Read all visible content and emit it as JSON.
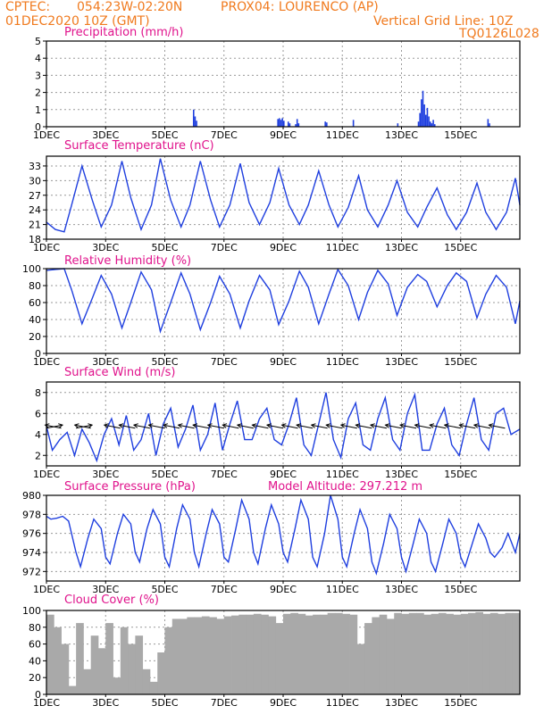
{
  "header": {
    "source": "CPTEC:",
    "coords": "054:23W-02:20N",
    "station": "PROX04: LOURENCO (AP)",
    "run": "01DEC2020 10Z (GMT)",
    "grid_note": "Vertical Grid Line: 10Z",
    "model": "TQ0126L028"
  },
  "colors": {
    "header": "#f07a1e",
    "title": "#e0138c",
    "series": "#1f3fdf",
    "cloud": "#a9a9a9"
  },
  "chart_data": [
    {
      "type": "bar",
      "title": "Precipitation (mm/h)",
      "x_tick_labels": [
        "1DEC",
        "3DEC",
        "5DEC",
        "7DEC",
        "9DEC",
        "11DEC",
        "13DEC",
        "15DEC"
      ],
      "ylim": [
        0,
        5
      ],
      "y_ticks": [
        0,
        1,
        2,
        3,
        4,
        5
      ],
      "grid": true,
      "series": [
        {
          "x": [
            4.95,
            5.0,
            5.05,
            7.8,
            7.85,
            7.9,
            7.95,
            8.0,
            8.15,
            8.2,
            8.4,
            8.45,
            8.5,
            9.4,
            9.45,
            10.35,
            11.85,
            12.55,
            12.6,
            12.65,
            12.7,
            12.75,
            12.8,
            12.85,
            12.9,
            12.95,
            13.0,
            13.05,
            13.1,
            14.9,
            14.95
          ],
          "y": [
            1.0,
            0.6,
            0.35,
            0.45,
            0.5,
            0.4,
            0.5,
            0.35,
            0.3,
            0.2,
            0.15,
            0.45,
            0.2,
            0.3,
            0.25,
            0.4,
            0.2,
            0.3,
            0.8,
            1.6,
            2.1,
            1.3,
            0.7,
            1.1,
            0.6,
            0.3,
            0.2,
            0.4,
            0.15,
            0.45,
            0.2
          ]
        }
      ]
    },
    {
      "type": "line",
      "title": "Surface Temperature (nC)",
      "x_tick_labels": [
        "1DEC",
        "3DEC",
        "5DEC",
        "7DEC",
        "9DEC",
        "11DEC",
        "13DEC",
        "15DEC"
      ],
      "ylim": [
        18,
        35
      ],
      "y_ticks": [
        18,
        21,
        24,
        27,
        30,
        33
      ],
      "grid": true,
      "series": [
        {
          "x": [
            0.0,
            0.3,
            0.6,
            0.85,
            1.2,
            1.55,
            1.85,
            2.2,
            2.55,
            2.85,
            3.2,
            3.55,
            3.85,
            4.2,
            4.55,
            4.85,
            5.2,
            5.55,
            5.85,
            6.2,
            6.55,
            6.85,
            7.2,
            7.55,
            7.85,
            8.2,
            8.55,
            8.85,
            9.2,
            9.55,
            9.85,
            10.2,
            10.55,
            10.85,
            11.2,
            11.55,
            11.85,
            12.2,
            12.55,
            12.85,
            13.2,
            13.55,
            13.85,
            14.2,
            14.55,
            14.85,
            15.2,
            15.55,
            15.85,
            16.0
          ],
          "y": [
            21.5,
            20.0,
            19.5,
            25.0,
            33.0,
            26.0,
            20.5,
            25.0,
            34.0,
            26.5,
            20.0,
            25.0,
            34.5,
            26.0,
            20.5,
            25.0,
            34.0,
            26.0,
            20.5,
            25.0,
            33.5,
            25.5,
            21.0,
            25.5,
            32.5,
            25.0,
            21.0,
            25.0,
            32.0,
            25.0,
            20.5,
            24.5,
            31.0,
            24.0,
            20.5,
            25.0,
            30.0,
            23.5,
            20.5,
            24.5,
            28.5,
            23.0,
            20.0,
            23.5,
            29.5,
            23.5,
            20.0,
            23.5,
            30.5,
            25.0
          ]
        }
      ]
    },
    {
      "type": "line",
      "title": "Relative Humidity (%)",
      "x_tick_labels": [
        "1DEC",
        "3DEC",
        "5DEC",
        "7DEC",
        "9DEC",
        "11DEC",
        "13DEC",
        "15DEC"
      ],
      "ylim": [
        0,
        100
      ],
      "y_ticks": [
        0,
        20,
        40,
        60,
        80,
        100
      ],
      "grid": true,
      "series": [
        {
          "x": [
            0.0,
            0.3,
            0.6,
            0.85,
            1.2,
            1.55,
            1.85,
            2.2,
            2.55,
            2.85,
            3.2,
            3.55,
            3.85,
            4.2,
            4.55,
            4.85,
            5.2,
            5.55,
            5.85,
            6.2,
            6.55,
            6.85,
            7.2,
            7.55,
            7.85,
            8.2,
            8.55,
            8.85,
            9.2,
            9.55,
            9.85,
            10.2,
            10.55,
            10.85,
            11.2,
            11.55,
            11.85,
            12.2,
            12.55,
            12.85,
            13.2,
            13.55,
            13.85,
            14.2,
            14.55,
            14.85,
            15.2,
            15.55,
            15.85,
            16.0
          ],
          "y": [
            98,
            99,
            100,
            75,
            35,
            65,
            92,
            70,
            30,
            60,
            96,
            75,
            26,
            60,
            95,
            70,
            28,
            60,
            91,
            70,
            30,
            62,
            92,
            75,
            34,
            62,
            97,
            78,
            35,
            70,
            99,
            80,
            40,
            72,
            98,
            82,
            45,
            78,
            93,
            85,
            55,
            80,
            95,
            85,
            42,
            70,
            92,
            78,
            35,
            62
          ]
        }
      ]
    },
    {
      "type": "line",
      "title": "Surface Wind (m/s)",
      "x_tick_labels": [
        "1DEC",
        "3DEC",
        "5DEC",
        "7DEC",
        "9DEC",
        "11DEC",
        "13DEC",
        "15DEC"
      ],
      "ylim": [
        1,
        9
      ],
      "y_ticks": [
        2,
        4,
        6,
        8
      ],
      "grid": true,
      "series": [
        {
          "x": [
            0.0,
            0.2,
            0.45,
            0.7,
            0.95,
            1.2,
            1.45,
            1.7,
            1.95,
            2.2,
            2.45,
            2.7,
            2.95,
            3.2,
            3.45,
            3.7,
            3.95,
            4.2,
            4.45,
            4.7,
            4.95,
            5.2,
            5.45,
            5.7,
            5.95,
            6.2,
            6.45,
            6.7,
            6.95,
            7.2,
            7.45,
            7.7,
            7.95,
            8.2,
            8.45,
            8.7,
            8.95,
            9.2,
            9.45,
            9.7,
            9.95,
            10.2,
            10.45,
            10.7,
            10.95,
            11.2,
            11.45,
            11.7,
            11.95,
            12.2,
            12.45,
            12.7,
            12.95,
            13.2,
            13.45,
            13.7,
            13.95,
            14.2,
            14.45,
            14.7,
            14.95,
            15.2,
            15.45,
            15.7,
            16.0
          ],
          "y": [
            4.8,
            2.5,
            3.5,
            4.2,
            2.0,
            4.5,
            3.2,
            1.5,
            4.0,
            5.5,
            3.0,
            5.8,
            2.5,
            3.5,
            6.0,
            2.0,
            5.0,
            6.5,
            2.8,
            4.5,
            6.8,
            2.5,
            4.0,
            7.0,
            2.5,
            5.0,
            7.2,
            3.5,
            3.5,
            5.5,
            6.5,
            3.5,
            3.0,
            5.0,
            7.5,
            3.0,
            2.0,
            5.0,
            8.0,
            3.5,
            1.8,
            5.5,
            7.0,
            3.0,
            2.5,
            5.5,
            7.5,
            3.5,
            2.5,
            6.0,
            7.8,
            2.5,
            2.5,
            5.0,
            6.5,
            3.0,
            2.0,
            5.0,
            7.5,
            3.5,
            2.5,
            6.0,
            6.5,
            4.0,
            4.5
          ]
        }
      ],
      "wind_arrows": [
        {
          "x": 0.0,
          "dx": 1.0,
          "dy": -0.35
        },
        {
          "x": 0.5,
          "dx": -1.0,
          "dy": -0.35
        },
        {
          "x": 1.0,
          "dx": 1.0,
          "dy": -0.35
        },
        {
          "x": 1.5,
          "dx": -1.0,
          "dy": -0.35
        },
        {
          "x": 2.5,
          "dx": -1.0,
          "dy": -0.35
        },
        {
          "x": 3.0,
          "dx": -1.0,
          "dy": -0.35
        },
        {
          "x": 3.5,
          "dx": -1.0,
          "dy": -0.35
        },
        {
          "x": 4.0,
          "dx": -1.0,
          "dy": -0.35
        },
        {
          "x": 4.5,
          "dx": -1.0,
          "dy": -0.35
        },
        {
          "x": 5.0,
          "dx": -1.0,
          "dy": -0.35
        },
        {
          "x": 5.5,
          "dx": -1.0,
          "dy": -0.35
        },
        {
          "x": 6.0,
          "dx": -1.0,
          "dy": -0.35
        },
        {
          "x": 6.5,
          "dx": -1.0,
          "dy": -0.35
        },
        {
          "x": 7.0,
          "dx": -1.0,
          "dy": -0.35
        },
        {
          "x": 7.5,
          "dx": -1.0,
          "dy": -0.35
        },
        {
          "x": 8.0,
          "dx": -1.0,
          "dy": -0.35
        },
        {
          "x": 8.5,
          "dx": -1.0,
          "dy": -0.35
        },
        {
          "x": 9.0,
          "dx": -1.0,
          "dy": -0.35
        },
        {
          "x": 9.5,
          "dx": -1.0,
          "dy": -0.35
        },
        {
          "x": 10.0,
          "dx": -1.0,
          "dy": -0.35
        },
        {
          "x": 10.5,
          "dx": -1.0,
          "dy": -0.35
        },
        {
          "x": 11.0,
          "dx": -1.0,
          "dy": -0.35
        },
        {
          "x": 11.5,
          "dx": -1.0,
          "dy": -0.35
        },
        {
          "x": 12.0,
          "dx": -1.0,
          "dy": -0.35
        },
        {
          "x": 12.5,
          "dx": -1.0,
          "dy": -0.35
        },
        {
          "x": 13.0,
          "dx": -1.0,
          "dy": -0.35
        },
        {
          "x": 13.5,
          "dx": -1.0,
          "dy": -0.35
        },
        {
          "x": 14.0,
          "dx": -1.0,
          "dy": -0.35
        },
        {
          "x": 14.5,
          "dx": -1.0,
          "dy": -0.35
        },
        {
          "x": 15.0,
          "dx": -1.0,
          "dy": -0.35
        },
        {
          "x": 15.5,
          "dx": -1.0,
          "dy": -0.35
        }
      ]
    },
    {
      "type": "line",
      "title": "Surface Pressure (hPa)",
      "annotation": "Model Altitude: 297.212 m",
      "x_tick_labels": [
        "1DEC",
        "3DEC",
        "5DEC",
        "7DEC",
        "9DEC",
        "11DEC",
        "13DEC",
        "15DEC"
      ],
      "ylim": [
        971,
        980
      ],
      "y_ticks": [
        972,
        974,
        976,
        978,
        980
      ],
      "grid": true,
      "series": [
        {
          "x": [
            0.0,
            0.15,
            0.35,
            0.55,
            0.75,
            1.0,
            1.15,
            1.4,
            1.6,
            1.85,
            2.0,
            2.15,
            2.4,
            2.6,
            2.85,
            3.0,
            3.15,
            3.4,
            3.6,
            3.85,
            4.0,
            4.15,
            4.4,
            4.6,
            4.85,
            5.0,
            5.15,
            5.4,
            5.6,
            5.85,
            6.0,
            6.15,
            6.4,
            6.6,
            6.85,
            7.0,
            7.15,
            7.4,
            7.6,
            7.85,
            8.0,
            8.15,
            8.4,
            8.6,
            8.85,
            9.0,
            9.15,
            9.4,
            9.6,
            9.85,
            10.0,
            10.15,
            10.4,
            10.6,
            10.85,
            11.0,
            11.15,
            11.4,
            11.6,
            11.85,
            12.0,
            12.15,
            12.4,
            12.6,
            12.85,
            13.0,
            13.15,
            13.4,
            13.6,
            13.85,
            14.0,
            14.15,
            14.4,
            14.6,
            14.85,
            15.0,
            15.15,
            15.4,
            15.6,
            15.85,
            16.0
          ],
          "y": [
            977.8,
            977.5,
            977.6,
            977.8,
            977.3,
            974.0,
            972.5,
            975.5,
            977.5,
            976.5,
            973.5,
            972.8,
            976.0,
            978.0,
            977.0,
            974.0,
            973.0,
            976.5,
            978.5,
            977.0,
            973.5,
            972.5,
            976.5,
            979.0,
            977.5,
            974.0,
            972.5,
            976.0,
            978.5,
            977.0,
            973.5,
            973.0,
            976.5,
            979.5,
            977.5,
            974.0,
            972.8,
            976.5,
            979.0,
            977.0,
            974.0,
            973.0,
            976.5,
            979.5,
            977.5,
            973.5,
            972.5,
            976.0,
            980.0,
            977.5,
            973.5,
            972.5,
            976.0,
            978.5,
            976.5,
            973.0,
            971.8,
            975.0,
            978.0,
            976.5,
            973.5,
            972.0,
            975.0,
            977.5,
            976.0,
            973.0,
            972.0,
            975.0,
            977.5,
            976.0,
            973.5,
            972.5,
            975.0,
            977.0,
            975.5,
            974.0,
            973.5,
            974.5,
            976.0,
            974.0,
            976.0
          ]
        }
      ]
    },
    {
      "type": "bar",
      "title": "Cloud Cover (%)",
      "x_tick_labels": [
        "1DEC",
        "3DEC",
        "5DEC",
        "7DEC",
        "9DEC",
        "11DEC",
        "13DEC",
        "15DEC"
      ],
      "ylim": [
        0,
        100
      ],
      "y_ticks": [
        0,
        20,
        40,
        60,
        80,
        100
      ],
      "grid": true,
      "series": [
        {
          "x": [
            0.0,
            0.25,
            0.5,
            0.75,
            1.0,
            1.25,
            1.5,
            1.75,
            2.0,
            2.25,
            2.5,
            2.75,
            3.0,
            3.25,
            3.5,
            3.75,
            4.0,
            4.25,
            4.5,
            4.75,
            5.0,
            5.25,
            5.5,
            5.75,
            6.0,
            6.25,
            6.5,
            6.75,
            7.0,
            7.25,
            7.5,
            7.75,
            8.0,
            8.25,
            8.5,
            8.75,
            9.0,
            9.25,
            9.5,
            9.75,
            10.0,
            10.25,
            10.5,
            10.75,
            11.0,
            11.25,
            11.5,
            11.75,
            12.0,
            12.25,
            12.5,
            12.75,
            13.0,
            13.25,
            13.5,
            13.75,
            14.0,
            14.25,
            14.5,
            14.75,
            15.0,
            15.25,
            15.5,
            15.75
          ],
          "y": [
            95,
            80,
            60,
            10,
            85,
            30,
            70,
            55,
            85,
            20,
            80,
            60,
            70,
            30,
            15,
            50,
            80,
            90,
            90,
            92,
            92,
            93,
            92,
            90,
            93,
            94,
            95,
            95,
            96,
            95,
            93,
            85,
            96,
            97,
            96,
            94,
            95,
            95,
            97,
            97,
            96,
            95,
            60,
            85,
            92,
            95,
            90,
            97,
            96,
            97,
            97,
            95,
            96,
            97,
            96,
            95,
            96,
            97,
            98,
            96,
            97,
            96,
            97,
            97
          ]
        }
      ]
    }
  ]
}
